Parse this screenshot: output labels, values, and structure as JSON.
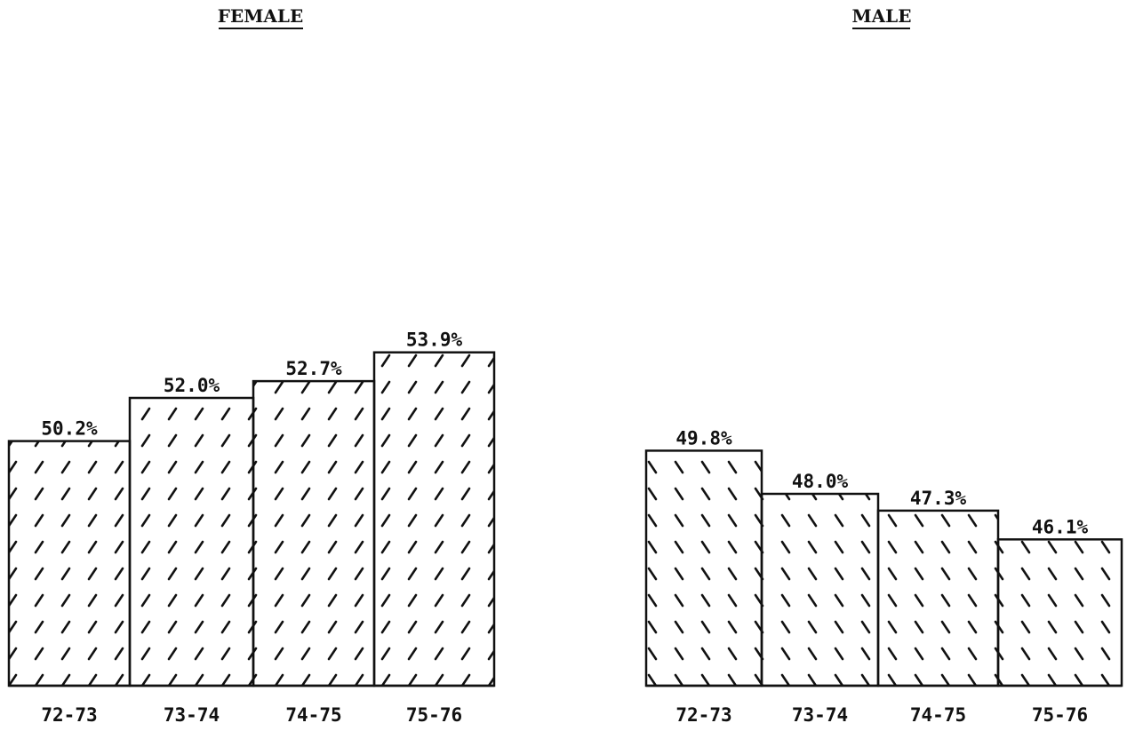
{
  "chart_data": [
    {
      "type": "bar",
      "title": "FEMALE",
      "categories": [
        "72-73",
        "73-74",
        "74-75",
        "75-76"
      ],
      "values": [
        50.2,
        52.0,
        52.7,
        53.9
      ],
      "value_labels": [
        "50.2%",
        "52.0%",
        "52.7%",
        "53.9%"
      ],
      "hatch": "forward-slash"
    },
    {
      "type": "bar",
      "title": "MALE",
      "categories": [
        "72-73",
        "73-74",
        "74-75",
        "75-76"
      ],
      "values": [
        49.8,
        48.0,
        47.3,
        46.1
      ],
      "value_labels": [
        "49.8%",
        "48.0%",
        "47.3%",
        "46.1%"
      ],
      "hatch": "back-slash"
    }
  ],
  "colors": {
    "ink": "#111111",
    "background": "#ffffff"
  }
}
